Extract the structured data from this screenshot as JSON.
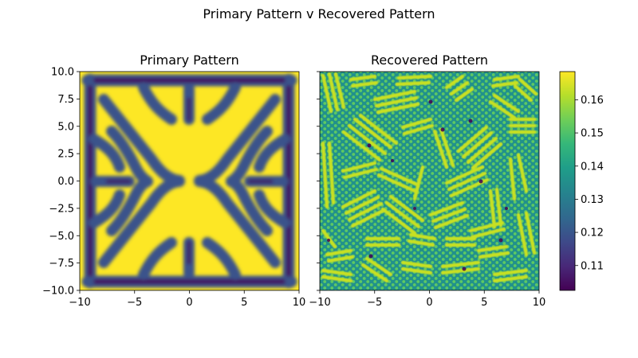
{
  "figure": {
    "title": "Primary Pattern v Recovered Pattern"
  },
  "chart_data": [
    {
      "type": "heatmap",
      "title": "Primary Pattern",
      "xlim": [
        -10,
        10
      ],
      "ylim": [
        -10,
        10
      ],
      "xticks": [
        "−10",
        "−5",
        "0",
        "5",
        "10"
      ],
      "yticks": [
        "10.0",
        "7.5",
        "5.0",
        "2.5",
        "0.0",
        "−2.5",
        "−5.0",
        "−7.5",
        "−10.0"
      ],
      "colormap": "viridis",
      "pattern": "symmetric labyrinth of yellow stripes with dark gaps, four-fold symmetric about the origin"
    },
    {
      "type": "heatmap",
      "title": "Recovered Pattern",
      "xlim": [
        -10,
        10
      ],
      "ylim": [
        -10,
        10
      ],
      "xticks": [
        "−10",
        "−5",
        "0",
        "5",
        "10"
      ],
      "colormap": "viridis",
      "pattern": "patchwork of short parallel yellow stripe domains and hexagonal spot lattices on teal background"
    }
  ],
  "colorbar": {
    "range": [
      0.1025,
      0.1685
    ],
    "ticks": [
      "0.16",
      "0.15",
      "0.14",
      "0.13",
      "0.12",
      "0.11"
    ],
    "tick_values": [
      0.16,
      0.15,
      0.14,
      0.13,
      0.12,
      0.11
    ],
    "colors": [
      "#440154",
      "#482878",
      "#3e4989",
      "#31688e",
      "#26828e",
      "#1f9e89",
      "#35b779",
      "#6ece58",
      "#b5de2b",
      "#fde725"
    ]
  }
}
